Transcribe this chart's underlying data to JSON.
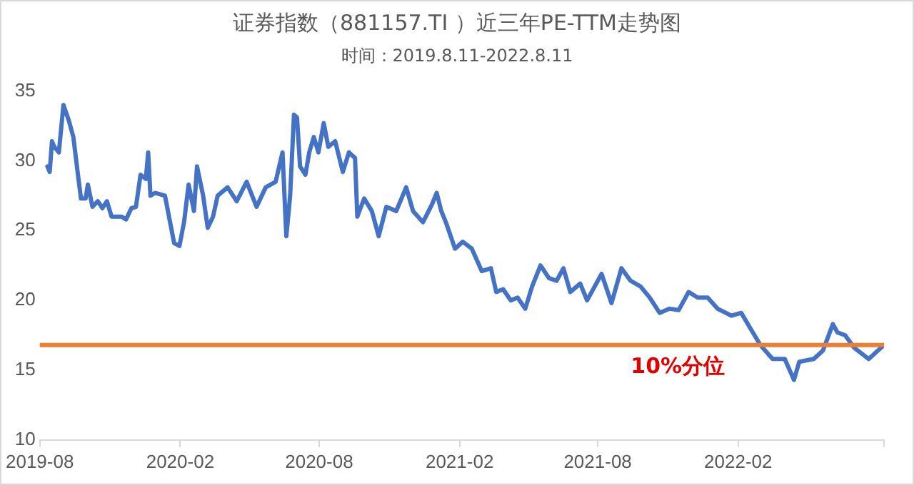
{
  "chart_data": {
    "type": "line",
    "title": "证券指数（881157.TI ）近三年PE-TTM走势图",
    "subtitle": "时间：2019.8.11-2022.8.11",
    "xlim": [
      "2019-08-01",
      "2022-08-11"
    ],
    "xticks": [
      {
        "value": "2019-08-01",
        "label": "2019-08"
      },
      {
        "value": "2020-02-01",
        "label": "2020-02"
      },
      {
        "value": "2020-08-01",
        "label": "2020-08"
      },
      {
        "value": "2021-02-01",
        "label": "2021-02"
      },
      {
        "value": "2021-08-01",
        "label": "2021-08"
      },
      {
        "value": "2022-02-01",
        "label": "2022-02"
      },
      {
        "value": "2022-08-11",
        "label": null
      }
    ],
    "ylim": [
      10,
      35
    ],
    "yticks": [
      10,
      15,
      20,
      25,
      30,
      35
    ],
    "grid": false,
    "legend": false,
    "marker": "none",
    "line_style": "solid",
    "ref_lines": [
      {
        "axis": "y",
        "value": 16.8,
        "label": "10%分位",
        "color": "#ed7d31"
      }
    ],
    "series": [
      {
        "color": "#4472c4",
        "x": [
          "2019-08-11",
          "2019-08-14",
          "2019-08-17",
          "2019-08-20",
          "2019-08-26",
          "2019-09-01",
          "2019-09-08",
          "2019-09-14",
          "2019-09-20",
          "2019-09-24",
          "2019-09-30",
          "2019-10-03",
          "2019-10-09",
          "2019-10-16",
          "2019-10-22",
          "2019-10-28",
          "2019-11-03",
          "2019-11-16",
          "2019-11-22",
          "2019-11-29",
          "2019-12-05",
          "2019-12-11",
          "2019-12-18",
          "2019-12-21",
          "2019-12-24",
          "2019-12-30",
          "2020-01-12",
          "2020-01-24",
          "2020-01-31",
          "2020-02-06",
          "2020-02-12",
          "2020-02-19",
          "2020-02-23",
          "2020-03-02",
          "2020-03-08",
          "2020-03-15",
          "2020-03-21",
          "2020-04-03",
          "2020-04-15",
          "2020-04-28",
          "2020-05-11",
          "2020-05-23",
          "2020-06-05",
          "2020-06-14",
          "2020-06-19",
          "2020-06-24",
          "2020-06-29",
          "2020-07-03",
          "2020-07-07",
          "2020-07-14",
          "2020-07-19",
          "2020-07-25",
          "2020-07-31",
          "2020-08-07",
          "2020-08-13",
          "2020-08-22",
          "2020-09-01",
          "2020-09-09",
          "2020-09-17",
          "2020-09-20",
          "2020-09-29",
          "2020-10-09",
          "2020-10-18",
          "2020-10-28",
          "2020-11-10",
          "2020-11-23",
          "2020-12-02",
          "2020-12-15",
          "2020-12-27",
          "2021-01-02",
          "2021-01-08",
          "2021-01-14",
          "2021-01-26",
          "2021-02-05",
          "2021-02-17",
          "2021-03-02",
          "2021-03-14",
          "2021-03-21",
          "2021-03-30",
          "2021-04-09",
          "2021-04-18",
          "2021-04-28",
          "2021-05-07",
          "2021-05-18",
          "2021-05-29",
          "2021-06-08",
          "2021-06-17",
          "2021-06-26",
          "2021-07-09",
          "2021-07-18",
          "2021-08-06",
          "2021-08-19",
          "2021-09-01",
          "2021-09-13",
          "2021-09-26",
          "2021-10-08",
          "2021-10-21",
          "2021-11-03",
          "2021-11-15",
          "2021-11-28",
          "2021-12-10",
          "2021-12-23",
          "2022-01-05",
          "2022-01-23",
          "2022-02-05",
          "2022-02-18",
          "2022-03-02",
          "2022-03-18",
          "2022-04-03",
          "2022-04-15",
          "2022-04-22",
          "2022-05-11",
          "2022-05-23",
          "2022-06-05",
          "2022-06-11",
          "2022-06-21",
          "2022-07-03",
          "2022-07-22",
          "2022-08-11"
        ],
        "values": [
          29.6,
          29.2,
          31.4,
          31.0,
          30.6,
          34.0,
          32.9,
          31.7,
          29.0,
          27.3,
          27.3,
          28.3,
          26.7,
          27.1,
          26.6,
          27.1,
          26.0,
          26.0,
          25.8,
          26.6,
          26.7,
          29.0,
          28.7,
          30.6,
          27.5,
          27.7,
          27.5,
          24.1,
          23.9,
          25.6,
          28.3,
          26.4,
          29.6,
          27.5,
          25.2,
          26.0,
          27.5,
          28.1,
          27.1,
          28.5,
          26.7,
          28.1,
          28.5,
          30.6,
          24.6,
          27.5,
          33.3,
          33.1,
          29.6,
          29.0,
          30.6,
          31.7,
          30.6,
          32.7,
          31.0,
          31.4,
          29.2,
          30.6,
          30.2,
          26.0,
          27.3,
          26.4,
          24.6,
          26.7,
          26.4,
          28.1,
          26.4,
          25.6,
          26.9,
          27.7,
          26.4,
          25.6,
          23.7,
          24.2,
          23.7,
          22.1,
          22.3,
          20.6,
          20.8,
          20.0,
          20.2,
          19.4,
          21.0,
          22.5,
          21.6,
          21.4,
          22.3,
          20.6,
          21.2,
          20.0,
          21.9,
          19.8,
          22.3,
          21.4,
          21.0,
          20.2,
          19.1,
          19.4,
          19.3,
          20.6,
          20.2,
          20.2,
          19.4,
          18.9,
          19.1,
          17.9,
          16.8,
          15.8,
          15.8,
          14.3,
          15.6,
          15.8,
          16.4,
          18.3,
          17.7,
          17.5,
          16.6,
          15.8,
          16.8
        ]
      }
    ]
  }
}
